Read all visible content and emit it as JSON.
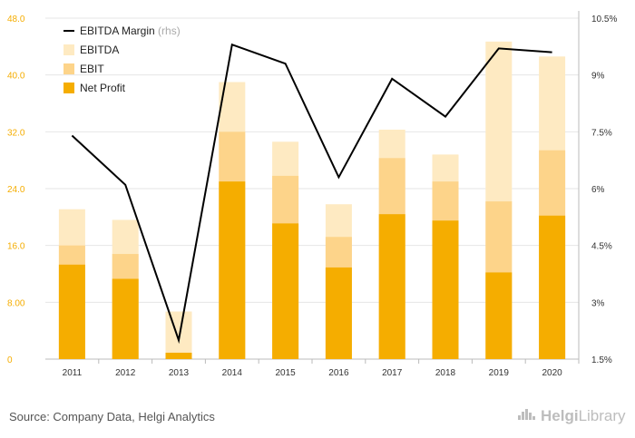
{
  "chart_data": {
    "type": "bar",
    "categories": [
      "2011",
      "2012",
      "2013",
      "2014",
      "2015",
      "2016",
      "2017",
      "2018",
      "2019",
      "2020"
    ],
    "series": [
      {
        "name": "Net Profit",
        "values": [
          13.3,
          11.3,
          0.9,
          25.0,
          19.1,
          12.9,
          20.4,
          19.5,
          12.2,
          20.2
        ],
        "color": "#f5ad00"
      },
      {
        "name": "EBIT",
        "values": [
          16.0,
          14.8,
          0.9,
          32.0,
          25.8,
          17.2,
          28.3,
          25.0,
          22.2,
          29.4
        ],
        "color": "#fdd48a"
      },
      {
        "name": "EBITDA",
        "values": [
          21.1,
          19.6,
          6.7,
          39.0,
          30.6,
          21.8,
          32.3,
          28.8,
          44.7,
          42.6
        ],
        "color": "#feeac2"
      }
    ],
    "line_series": {
      "name": "EBITDA Margin",
      "name_suffix": "(rhs)",
      "values": [
        7.4,
        6.1,
        2.0,
        9.8,
        9.3,
        6.3,
        8.9,
        7.9,
        9.7,
        9.6
      ],
      "color": "#000000"
    },
    "y_left": {
      "min": 0,
      "max": 48,
      "ticks": [
        "0",
        "8.00",
        "16.0",
        "24.0",
        "32.0",
        "40.0",
        "48.0"
      ],
      "tick_color": "#f5ad00"
    },
    "y_right": {
      "min": 1.5,
      "max": 10.5,
      "ticks": [
        "1.5%",
        "3%",
        "4.5%",
        "6%",
        "7.5%",
        "9%",
        "10.5%"
      ]
    },
    "legend": {
      "position": "top-left"
    },
    "grid": true
  },
  "footer": {
    "source": "Source: Company Data, Helgi Analytics",
    "logo_bold": "Helgi",
    "logo_rest": "Library"
  }
}
